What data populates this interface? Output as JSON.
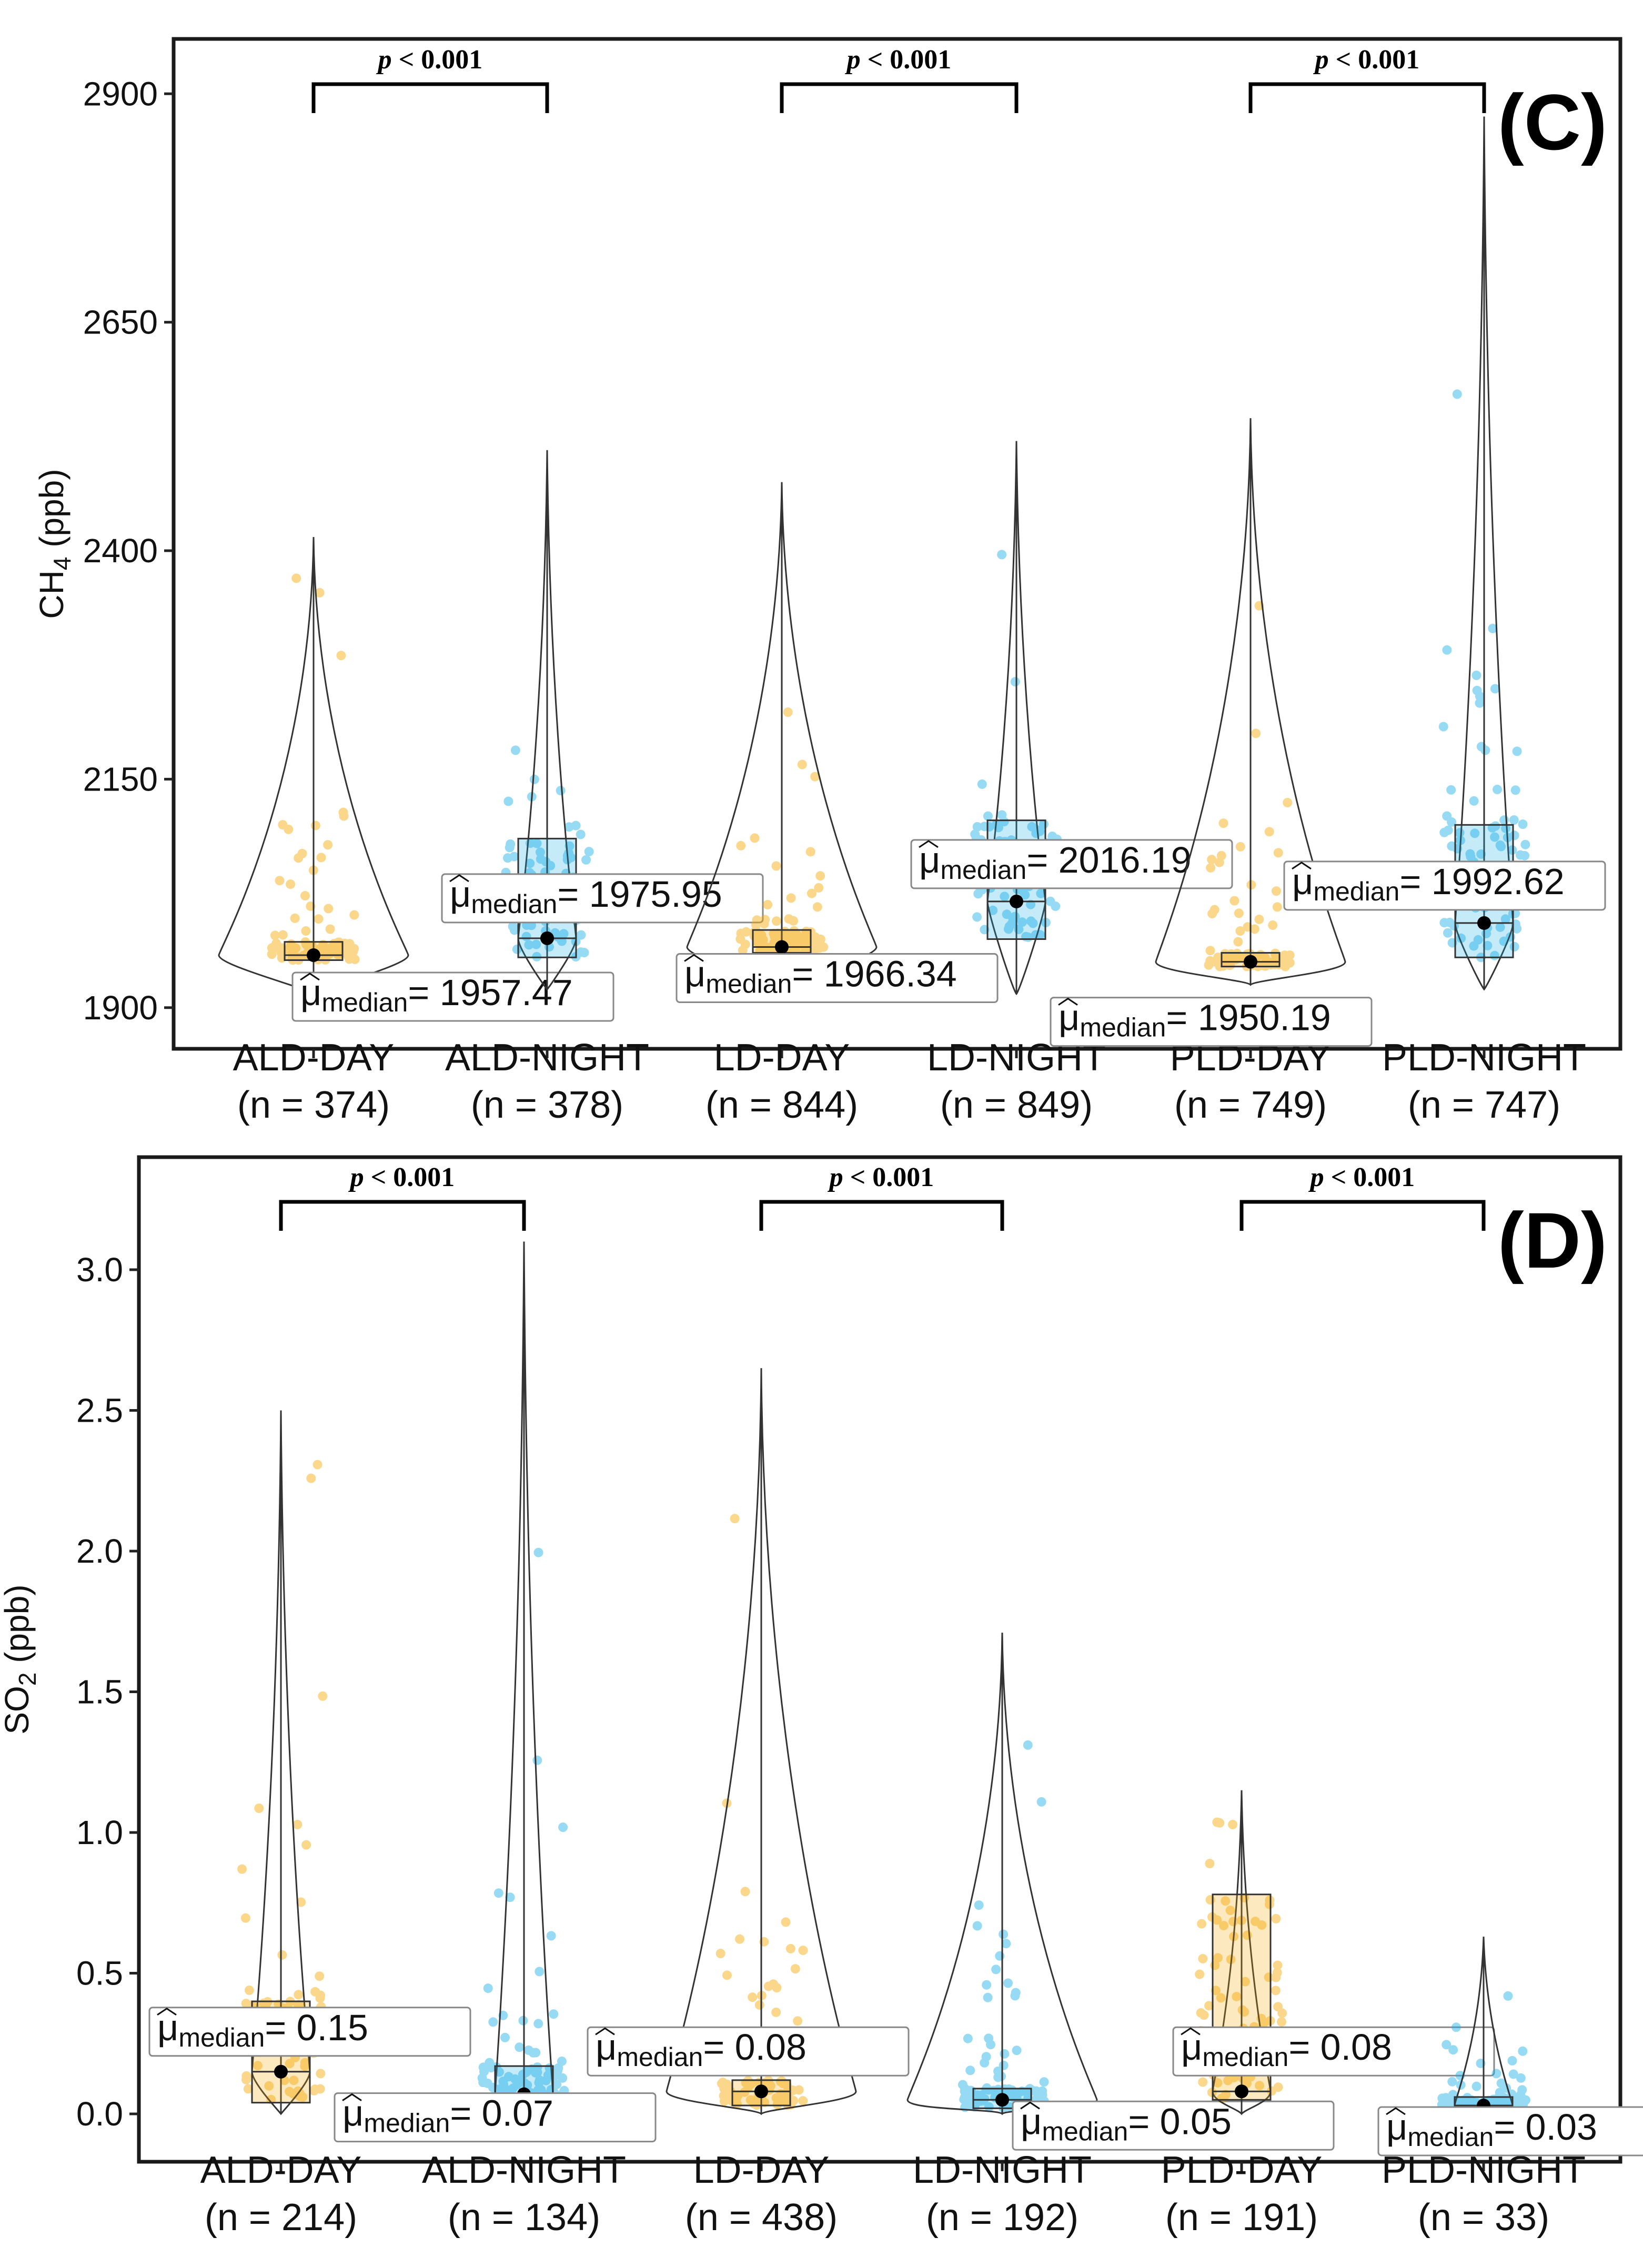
{
  "colors": {
    "day": "#f6a800",
    "night": "#19aee6",
    "frame": "#1a1a1a"
  },
  "chart_data": [
    {
      "type": "violin-box-scatter",
      "panel_label": "(C)",
      "ylabel": "CH",
      "ylabel_sub": "4",
      "ylabel_unit": " (ppb)",
      "ylim": [
        1855,
        2960
      ],
      "yticks": [
        1900,
        2150,
        2400,
        2650,
        2900
      ],
      "ytick_labels": [
        "1900",
        "2150",
        "2400",
        "2650",
        "2900"
      ],
      "groups": [
        {
          "name": "ALD-DAY",
          "n_label": "(n = 374)",
          "period": "day",
          "median": 1957.47,
          "median_label": "= 1957.47",
          "q1": 1952,
          "q3": 1972,
          "min": 1915,
          "max": 2415
        },
        {
          "name": "ALD-NIGHT",
          "n_label": "(n = 378)",
          "period": "night",
          "median": 1975.95,
          "median_label": "= 1975.95",
          "q1": 1955,
          "q3": 2085,
          "min": 1920,
          "max": 2510
        },
        {
          "name": "LD-DAY",
          "n_label": "(n = 844)",
          "period": "day",
          "median": 1966.34,
          "median_label": "= 1966.34",
          "q1": 1960,
          "q3": 1985,
          "min": 1920,
          "max": 2475
        },
        {
          "name": "LD-NIGHT",
          "n_label": "(n = 849)",
          "period": "night",
          "median": 2016.19,
          "median_label": "= 2016.19",
          "q1": 1975,
          "q3": 2105,
          "min": 1915,
          "max": 2520
        },
        {
          "name": "PLD-DAY",
          "n_label": "(n = 749)",
          "period": "day",
          "median": 1950.19,
          "median_label": "= 1950.19",
          "q1": 1945,
          "q3": 1960,
          "min": 1925,
          "max": 2545
        },
        {
          "name": "PLD-NIGHT",
          "n_label": "(n = 747)",
          "period": "night",
          "median": 1992.62,
          "median_label": "= 1992.62",
          "q1": 1955,
          "q3": 2100,
          "min": 1920,
          "max": 2875
        }
      ],
      "comparisons": [
        {
          "pair": [
            "ALD-DAY",
            "ALD-NIGHT"
          ],
          "label": "p",
          "label_rest": " < 0.001"
        },
        {
          "pair": [
            "LD-DAY",
            "LD-NIGHT"
          ],
          "label": "p",
          "label_rest": " < 0.001"
        },
        {
          "pair": [
            "PLD-DAY",
            "PLD-NIGHT"
          ],
          "label": "p",
          "label_rest": " < 0.001"
        }
      ],
      "median_symbol": "μ",
      "median_subscript": "median"
    },
    {
      "type": "violin-box-scatter",
      "panel_label": "(D)",
      "ylabel": "SO",
      "ylabel_sub": "2",
      "ylabel_unit": " (ppb)",
      "ylim": [
        -0.17,
        3.4
      ],
      "yticks": [
        0,
        0.5,
        1,
        1.5,
        2,
        2.5,
        3
      ],
      "ytick_labels": [
        "0.0",
        "0.5",
        "1.0",
        "1.5",
        "2.0",
        "2.5",
        "3.0"
      ],
      "groups": [
        {
          "name": "ALD-DAY",
          "n_label": "(n = 214)",
          "period": "day",
          "median": 0.15,
          "median_label": "= 0.15",
          "q1": 0.04,
          "q3": 0.4,
          "min": 0,
          "max": 2.5
        },
        {
          "name": "ALD-NIGHT",
          "n_label": "(n = 134)",
          "period": "night",
          "median": 0.07,
          "median_label": "= 0.07",
          "q1": 0.01,
          "q3": 0.17,
          "min": 0,
          "max": 3.1
        },
        {
          "name": "LD-DAY",
          "n_label": "(n = 438)",
          "period": "day",
          "median": 0.08,
          "median_label": "= 0.08",
          "q1": 0.03,
          "q3": 0.12,
          "min": 0,
          "max": 2.65
        },
        {
          "name": "LD-NIGHT",
          "n_label": "(n = 192)",
          "period": "night",
          "median": 0.05,
          "median_label": "= 0.05",
          "q1": 0.02,
          "q3": 0.09,
          "min": 0,
          "max": 1.71
        },
        {
          "name": "PLD-DAY",
          "n_label": "(n = 191)",
          "period": "day",
          "median": 0.08,
          "median_label": "= 0.08",
          "q1": 0.05,
          "q3": 0.78,
          "min": 0,
          "max": 1.15
        },
        {
          "name": "PLD-NIGHT",
          "n_label": "(n = 33)",
          "period": "night",
          "median": 0.03,
          "median_label": "= 0.03",
          "q1": 0.02,
          "q3": 0.06,
          "min": 0,
          "max": 0.63
        }
      ],
      "comparisons": [
        {
          "pair": [
            "ALD-DAY",
            "ALD-NIGHT"
          ],
          "label": "p",
          "label_rest": " < 0.001"
        },
        {
          "pair": [
            "LD-DAY",
            "LD-NIGHT"
          ],
          "label": "p",
          "label_rest": " < 0.001"
        },
        {
          "pair": [
            "PLD-DAY",
            "PLD-NIGHT"
          ],
          "label": "p",
          "label_rest": " < 0.001"
        }
      ],
      "median_symbol": "μ",
      "median_subscript": "median"
    }
  ]
}
